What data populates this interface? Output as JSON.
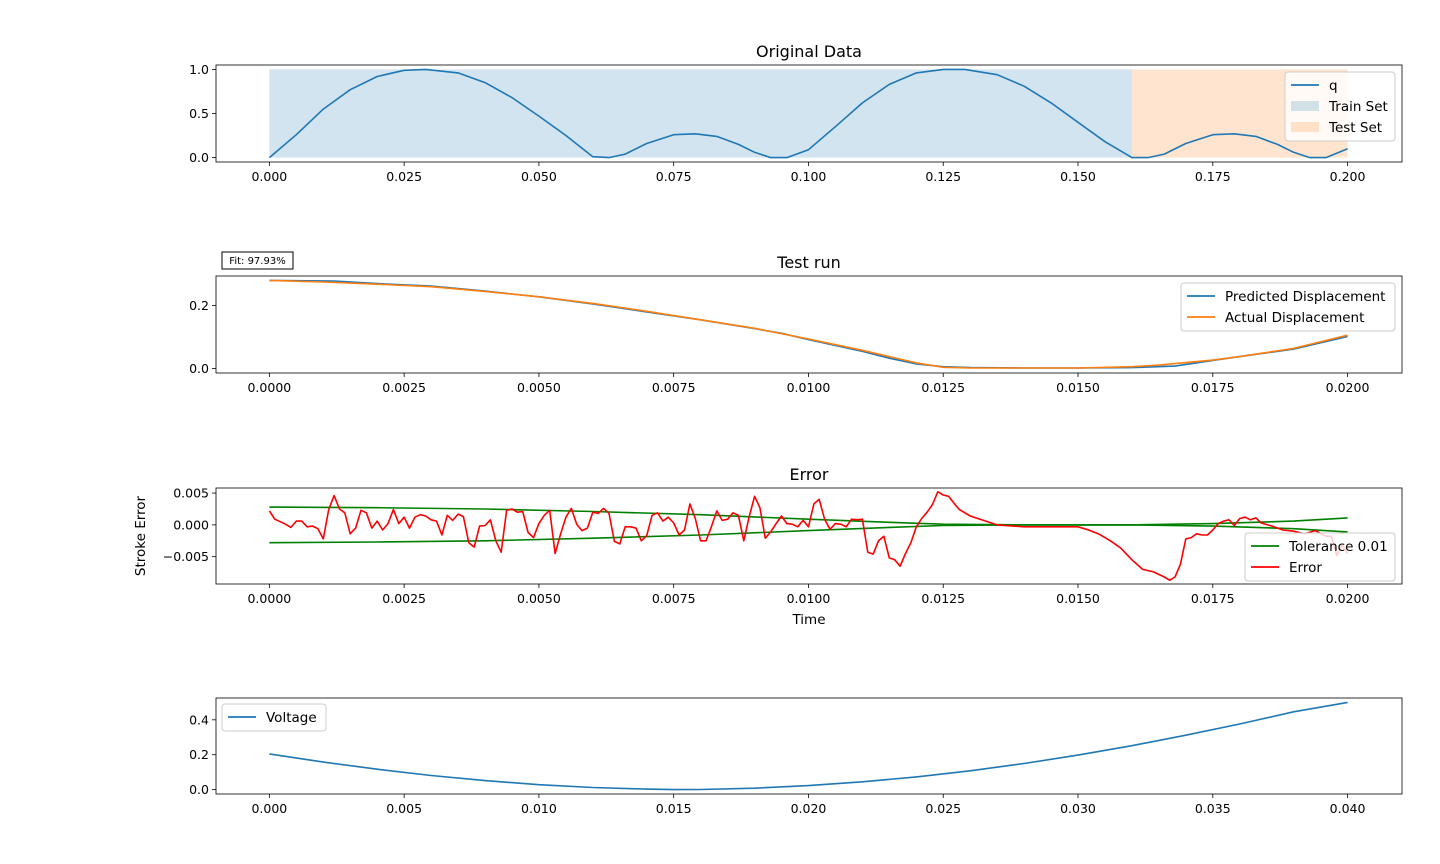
{
  "colors": {
    "q": "#1f77b4",
    "train": "#1f77b4",
    "test": "#ff7f0e",
    "predicted": "#1f77b4",
    "actual": "#ff7f0e",
    "tolerance": "#008000",
    "error": "#ff0000",
    "voltage": "#1f77b4"
  },
  "chart_data": [
    {
      "id": "original",
      "type": "line",
      "title": "Original Data",
      "xlabel": "",
      "ylabel": "",
      "xlim": [
        -0.0099,
        0.2101
      ],
      "ylim": [
        -0.05,
        1.05
      ],
      "x_ticks": [
        0.0,
        0.025,
        0.05,
        0.075,
        0.1,
        0.125,
        0.15,
        0.175,
        0.2
      ],
      "x_tick_labels": [
        "0.000",
        "0.025",
        "0.050",
        "0.075",
        "0.100",
        "0.125",
        "0.150",
        "0.175",
        "0.200"
      ],
      "y_ticks": [
        0.0,
        0.5,
        1.0
      ],
      "y_tick_labels": [
        "0.0",
        "0.5",
        "1.0"
      ],
      "legend": {
        "position": "upper-right",
        "entries": [
          "q",
          "Train Set",
          "Test Set"
        ]
      },
      "spans": [
        {
          "name": "Train Set",
          "x_start": 0.0,
          "x_end": 0.16,
          "y_start": 0.0,
          "y_end": 1.0
        },
        {
          "name": "Test Set",
          "x_start": 0.16,
          "x_end": 0.2,
          "y_start": 0.0,
          "y_end": 1.0
        }
      ],
      "series": [
        {
          "name": "q",
          "x": [
            0.0,
            0.005,
            0.01,
            0.015,
            0.02,
            0.025,
            0.029,
            0.035,
            0.04,
            0.045,
            0.05,
            0.055,
            0.06,
            0.063,
            0.066,
            0.07,
            0.075,
            0.079,
            0.083,
            0.087,
            0.09,
            0.093,
            0.096,
            0.1,
            0.105,
            0.11,
            0.115,
            0.12,
            0.125,
            0.129,
            0.135,
            0.14,
            0.145,
            0.15,
            0.155,
            0.16,
            0.163,
            0.166,
            0.17,
            0.175,
            0.179,
            0.183,
            0.187,
            0.19,
            0.193,
            0.196,
            0.2
          ],
          "y": [
            0.0,
            0.26,
            0.55,
            0.77,
            0.92,
            0.99,
            1.0,
            0.96,
            0.85,
            0.68,
            0.47,
            0.25,
            0.01,
            0.0,
            0.04,
            0.16,
            0.26,
            0.27,
            0.24,
            0.15,
            0.06,
            0.0,
            0.0,
            0.09,
            0.35,
            0.62,
            0.83,
            0.96,
            1.0,
            1.0,
            0.94,
            0.81,
            0.62,
            0.4,
            0.18,
            0.0,
            0.0,
            0.04,
            0.16,
            0.26,
            0.27,
            0.24,
            0.15,
            0.06,
            0.0,
            0.0,
            0.1
          ]
        }
      ]
    },
    {
      "id": "test-run",
      "type": "line",
      "title": "Test run",
      "xlabel": "",
      "ylabel": "",
      "annotation": "Fit: 97.93%",
      "xlim": [
        -0.00099,
        0.02101
      ],
      "ylim": [
        -0.014,
        0.294
      ],
      "x_ticks": [
        0.0,
        0.0025,
        0.005,
        0.0075,
        0.01,
        0.0125,
        0.015,
        0.0175,
        0.02
      ],
      "x_tick_labels": [
        "0.0000",
        "0.0025",
        "0.0050",
        "0.0075",
        "0.0100",
        "0.0125",
        "0.0150",
        "0.0175",
        "0.0200"
      ],
      "y_ticks": [
        0.0,
        0.2
      ],
      "y_tick_labels": [
        "0.0",
        "0.2"
      ],
      "legend": {
        "position": "upper-right",
        "entries": [
          "Predicted Displacement",
          "Actual Displacement"
        ]
      },
      "series": [
        {
          "name": "Predicted Displacement",
          "x": [
            0.0,
            0.0012,
            0.002,
            0.003,
            0.004,
            0.0045,
            0.005,
            0.006,
            0.007,
            0.008,
            0.009,
            0.0095,
            0.01,
            0.011,
            0.0115,
            0.012,
            0.0125,
            0.013,
            0.014,
            0.015,
            0.016,
            0.0168,
            0.0175,
            0.018,
            0.019,
            0.02
          ],
          "y": [
            0.28,
            0.278,
            0.27,
            0.262,
            0.246,
            0.237,
            0.228,
            0.205,
            0.18,
            0.155,
            0.127,
            0.112,
            0.092,
            0.055,
            0.033,
            0.015,
            0.006,
            0.003,
            0.002,
            0.002,
            0.003,
            0.008,
            0.026,
            0.038,
            0.062,
            0.102
          ]
        },
        {
          "name": "Actual Displacement",
          "x": [
            0.0,
            0.001,
            0.002,
            0.003,
            0.004,
            0.005,
            0.006,
            0.007,
            0.008,
            0.009,
            0.01,
            0.011,
            0.012,
            0.0125,
            0.013,
            0.014,
            0.015,
            0.016,
            0.0165,
            0.017,
            0.0175,
            0.018,
            0.019,
            0.02
          ],
          "y": [
            0.28,
            0.275,
            0.268,
            0.26,
            0.245,
            0.228,
            0.207,
            0.182,
            0.155,
            0.128,
            0.094,
            0.058,
            0.018,
            0.004,
            0.002,
            0.002,
            0.002,
            0.006,
            0.011,
            0.019,
            0.027,
            0.038,
            0.064,
            0.106
          ]
        }
      ]
    },
    {
      "id": "error",
      "type": "line",
      "title": "Error",
      "xlabel": "Time",
      "ylabel": "Stroke Error",
      "xlim": [
        -0.00099,
        0.02101
      ],
      "ylim": [
        -0.0093,
        0.0058
      ],
      "x_ticks": [
        0.0,
        0.0025,
        0.005,
        0.0075,
        0.01,
        0.0125,
        0.015,
        0.0175,
        0.02
      ],
      "x_tick_labels": [
        "0.0000",
        "0.0025",
        "0.0050",
        "0.0075",
        "0.0100",
        "0.0125",
        "0.0150",
        "0.0175",
        "0.0200"
      ],
      "y_ticks": [
        -0.005,
        0.0,
        0.005
      ],
      "y_tick_labels": [
        "−0.005",
        "0.000",
        "0.005"
      ],
      "legend": {
        "position": "lower-right",
        "entries": [
          "Tolerance 0.01",
          "Error"
        ]
      },
      "series": [
        {
          "name": "Tolerance 0.01",
          "x": [
            0.0,
            0.002,
            0.004,
            0.006,
            0.008,
            0.01,
            0.0115,
            0.0125,
            0.014,
            0.016,
            0.0175,
            0.019,
            0.02
          ],
          "y": [
            0.0028,
            0.0027,
            0.0025,
            0.0021,
            0.0016,
            0.0009,
            0.0004,
            0.0001,
            0.0,
            0.0,
            0.0002,
            0.0006,
            0.0011
          ]
        },
        {
          "name": "Tolerance 0.01",
          "x": [
            0.0,
            0.002,
            0.004,
            0.006,
            0.008,
            0.01,
            0.0115,
            0.0125,
            0.014,
            0.016,
            0.0175,
            0.019,
            0.02
          ],
          "y": [
            -0.0028,
            -0.0027,
            -0.0025,
            -0.0021,
            -0.0016,
            -0.0009,
            -0.0004,
            -0.0001,
            0.0,
            0.0,
            -0.0002,
            -0.0006,
            -0.0011
          ]
        },
        {
          "name": "Error",
          "x": [
            0.0,
            0.0001,
            0.0002,
            0.0003,
            0.0004,
            0.0005,
            0.0006,
            0.0007,
            0.0008,
            0.0009,
            0.001,
            0.0011,
            0.0012,
            0.0013,
            0.0014,
            0.0015,
            0.0016,
            0.0017,
            0.0018,
            0.0019,
            0.002,
            0.0021,
            0.0022,
            0.0023,
            0.0024,
            0.0025,
            0.0026,
            0.0027,
            0.0028,
            0.0029,
            0.003,
            0.0031,
            0.0032,
            0.0033,
            0.0034,
            0.0035,
            0.0036,
            0.0037,
            0.0038,
            0.0039,
            0.004,
            0.0041,
            0.0042,
            0.0043,
            0.0044,
            0.0045,
            0.0046,
            0.0047,
            0.0048,
            0.0049,
            0.005,
            0.0051,
            0.0052,
            0.0053,
            0.0054,
            0.0055,
            0.0056,
            0.0057,
            0.0058,
            0.0059,
            0.006,
            0.0061,
            0.0062,
            0.0063,
            0.0064,
            0.0065,
            0.0066,
            0.0067,
            0.0068,
            0.0069,
            0.007,
            0.0071,
            0.0072,
            0.0073,
            0.0074,
            0.0075,
            0.0076,
            0.0077,
            0.0078,
            0.0079,
            0.008,
            0.0081,
            0.0082,
            0.0083,
            0.0084,
            0.0085,
            0.0086,
            0.0087,
            0.0088,
            0.0089,
            0.009,
            0.0091,
            0.0092,
            0.0093,
            0.0094,
            0.0095,
            0.0096,
            0.0097,
            0.0098,
            0.0099,
            0.01,
            0.0101,
            0.0102,
            0.0103,
            0.0104,
            0.0105,
            0.0106,
            0.0107,
            0.0108,
            0.0109,
            0.011,
            0.0111,
            0.0112,
            0.0113,
            0.0114,
            0.0115,
            0.0116,
            0.0117,
            0.0118,
            0.0119,
            0.012,
            0.0121,
            0.0122,
            0.0123,
            0.0124,
            0.0125,
            0.0126,
            0.0127,
            0.0128,
            0.013,
            0.0135,
            0.014,
            0.0145,
            0.015,
            0.0152,
            0.0154,
            0.0156,
            0.0158,
            0.016,
            0.0162,
            0.0164,
            0.0166,
            0.0167,
            0.0168,
            0.0169,
            0.017,
            0.0171,
            0.0172,
            0.0173,
            0.0174,
            0.0175,
            0.0176,
            0.0177,
            0.0178,
            0.0179,
            0.018,
            0.0181,
            0.0182,
            0.0183,
            0.0184,
            0.0186,
            0.0188,
            0.019,
            0.0192,
            0.0194,
            0.0196,
            0.0197,
            0.0198,
            0.0199,
            0.02
          ],
          "y": [
            0.0022,
            0.0009,
            0.0005,
            0.0001,
            -0.0004,
            0.0006,
            0.0006,
            -0.0003,
            -0.0002,
            -0.0006,
            -0.0022,
            0.0024,
            0.0046,
            0.0025,
            0.0019,
            -0.0014,
            -0.0005,
            0.0023,
            0.0019,
            -0.0005,
            0.0006,
            -0.0008,
            0.0002,
            0.0024,
            0.0002,
            0.0012,
            -0.0005,
            0.0012,
            0.0016,
            0.0014,
            0.0008,
            0.0006,
            -0.0016,
            0.0015,
            0.0007,
            0.0017,
            0.0013,
            -0.0028,
            -0.0035,
            -0.0002,
            -0.0001,
            0.0008,
            -0.0025,
            -0.0043,
            0.0023,
            0.0025,
            0.002,
            0.0021,
            -0.0012,
            -0.002,
            0.0002,
            0.0015,
            0.0023,
            -0.0045,
            -0.0015,
            0.0012,
            0.0026,
            0.0001,
            -0.0009,
            -0.0005,
            0.002,
            0.0018,
            0.0026,
            0.0018,
            -0.0026,
            -0.003,
            -0.0003,
            -0.0003,
            -0.0005,
            -0.0025,
            -0.0017,
            0.0015,
            0.0019,
            0.0006,
            0.0012,
            0.0003,
            -0.0016,
            -0.0008,
            0.0033,
            0.001,
            -0.0025,
            -0.0025,
            -0.0003,
            0.0022,
            0.0007,
            0.0009,
            0.0019,
            0.0015,
            -0.0025,
            0.0013,
            0.0045,
            0.0027,
            -0.0021,
            -0.0011,
            0.0002,
            0.0014,
            0.0002,
            0.0001,
            -0.0003,
            0.0007,
            -0.0003,
            0.0033,
            0.004,
            0.0009,
            -0.0007,
            0.0002,
            0.0001,
            -0.0003,
            0.0009,
            0.0008,
            0.0009,
            -0.0043,
            -0.0046,
            -0.0025,
            -0.0018,
            -0.0052,
            -0.0055,
            -0.0065,
            -0.0045,
            -0.0028,
            -0.0003,
            0.001,
            0.002,
            0.0032,
            0.0052,
            0.0047,
            0.0045,
            0.0034,
            0.0024,
            0.0014,
            0.0,
            -0.0003,
            -0.0003,
            -0.0003,
            -0.0008,
            -0.0015,
            -0.0025,
            -0.0037,
            -0.0055,
            -0.007,
            -0.0074,
            -0.0082,
            -0.0087,
            -0.0082,
            -0.0062,
            -0.0022,
            -0.002,
            -0.0014,
            -0.0016,
            -0.0016,
            -0.0008,
            0.0002,
            0.0006,
            0.0008,
            -0.0001,
            0.001,
            0.0012,
            0.0008,
            0.0011,
            0.0003,
            -0.0002,
            -0.0008,
            -0.001,
            -0.0014,
            -0.0009,
            -0.0018,
            -0.0018,
            -0.0048,
            -0.0032,
            -0.0045
          ]
        }
      ]
    },
    {
      "id": "voltage",
      "type": "line",
      "title": "",
      "xlabel": "",
      "ylabel": "",
      "xlim": [
        -0.00198,
        0.04202
      ],
      "ylim": [
        -0.025,
        0.525
      ],
      "x_ticks": [
        0.0,
        0.005,
        0.01,
        0.015,
        0.02,
        0.025,
        0.03,
        0.035,
        0.04
      ],
      "x_tick_labels": [
        "0.000",
        "0.005",
        "0.010",
        "0.015",
        "0.020",
        "0.025",
        "0.030",
        "0.035",
        "0.040"
      ],
      "y_ticks": [
        0.0,
        0.2,
        0.4
      ],
      "y_tick_labels": [
        "0.0",
        "0.2",
        "0.4"
      ],
      "legend": {
        "position": "upper-left",
        "entries": [
          "Voltage"
        ]
      },
      "series": [
        {
          "name": "Voltage",
          "x": [
            0.0,
            0.002,
            0.004,
            0.006,
            0.008,
            0.01,
            0.012,
            0.014,
            0.015,
            0.016,
            0.018,
            0.02,
            0.022,
            0.024,
            0.026,
            0.028,
            0.03,
            0.032,
            0.034,
            0.036,
            0.038,
            0.04
          ],
          "y": [
            0.205,
            0.158,
            0.117,
            0.081,
            0.052,
            0.028,
            0.012,
            0.003,
            0.0,
            0.001,
            0.008,
            0.023,
            0.045,
            0.073,
            0.108,
            0.15,
            0.198,
            0.252,
            0.312,
            0.376,
            0.446,
            0.5
          ]
        }
      ]
    }
  ]
}
